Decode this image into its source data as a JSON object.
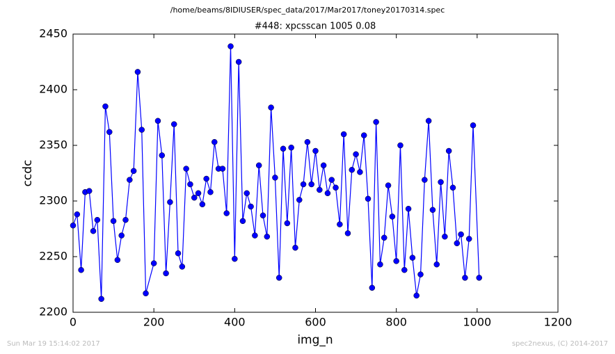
{
  "chart_data": {
    "type": "line",
    "suptitle": "/home/beams/8IDIUSER/spec_data/2017/Mar2017/toney20170314.spec",
    "title": "#448: xpcsscan 1005 0.08",
    "xlabel": "img_n",
    "ylabel": "ccdc",
    "x": [
      0,
      10,
      20,
      30,
      40,
      50,
      60,
      70,
      80,
      90,
      100,
      110,
      120,
      130,
      140,
      150,
      160,
      170,
      180,
      200,
      210,
      220,
      230,
      240,
      250,
      260,
      270,
      280,
      290,
      300,
      310,
      320,
      330,
      340,
      350,
      360,
      370,
      380,
      390,
      400,
      410,
      420,
      430,
      440,
      450,
      460,
      470,
      480,
      490,
      500,
      510,
      520,
      530,
      540,
      550,
      560,
      570,
      580,
      590,
      600,
      610,
      620,
      630,
      640,
      650,
      660,
      670,
      680,
      690,
      700,
      710,
      720,
      730,
      740,
      750,
      760,
      770,
      780,
      790,
      800,
      810,
      820,
      830,
      840,
      850,
      860,
      870,
      880,
      890,
      900,
      910,
      920,
      930,
      940,
      950,
      960,
      970,
      980,
      990,
      1005
    ],
    "series": [
      {
        "name": "ccdc",
        "color": "#0000ff",
        "values": [
          2278,
          2288,
          2238,
          2308,
          2309,
          2273,
          2283,
          2212,
          2385,
          2362,
          2282,
          2247,
          2269,
          2283,
          2319,
          2327,
          2416,
          2364,
          2217,
          2244,
          2372,
          2341,
          2235,
          2299,
          2369,
          2253,
          2241,
          2329,
          2315,
          2303,
          2307,
          2297,
          2320,
          2308,
          2353,
          2329,
          2329,
          2289,
          2439,
          2248,
          2425,
          2282,
          2307,
          2295,
          2269,
          2332,
          2287,
          2268,
          2384,
          2321,
          2231,
          2347,
          2280,
          2348,
          2258,
          2301,
          2315,
          2353,
          2315,
          2345,
          2310,
          2332,
          2307,
          2319,
          2312,
          2279,
          2360,
          2271,
          2328,
          2342,
          2326,
          2359,
          2302,
          2222,
          2371,
          2243,
          2267,
          2314,
          2286,
          2246,
          2350,
          2238,
          2293,
          2249,
          2215,
          2234,
          2319,
          2372,
          2292,
          2243,
          2317,
          2268,
          2345,
          2312,
          2262,
          2270,
          2231,
          2266,
          2368,
          2231
        ]
      }
    ],
    "xlim": [
      0,
      1200
    ],
    "xticks": [
      0,
      200,
      400,
      600,
      800,
      1000,
      1200
    ],
    "ylim": [
      2200,
      2450
    ],
    "yticks": [
      2200,
      2250,
      2300,
      2350,
      2400,
      2450
    ],
    "footer_left": "Sun Mar 19 15:14:02 2017",
    "footer_right": "spec2nexus, (C) 2014-2017"
  }
}
